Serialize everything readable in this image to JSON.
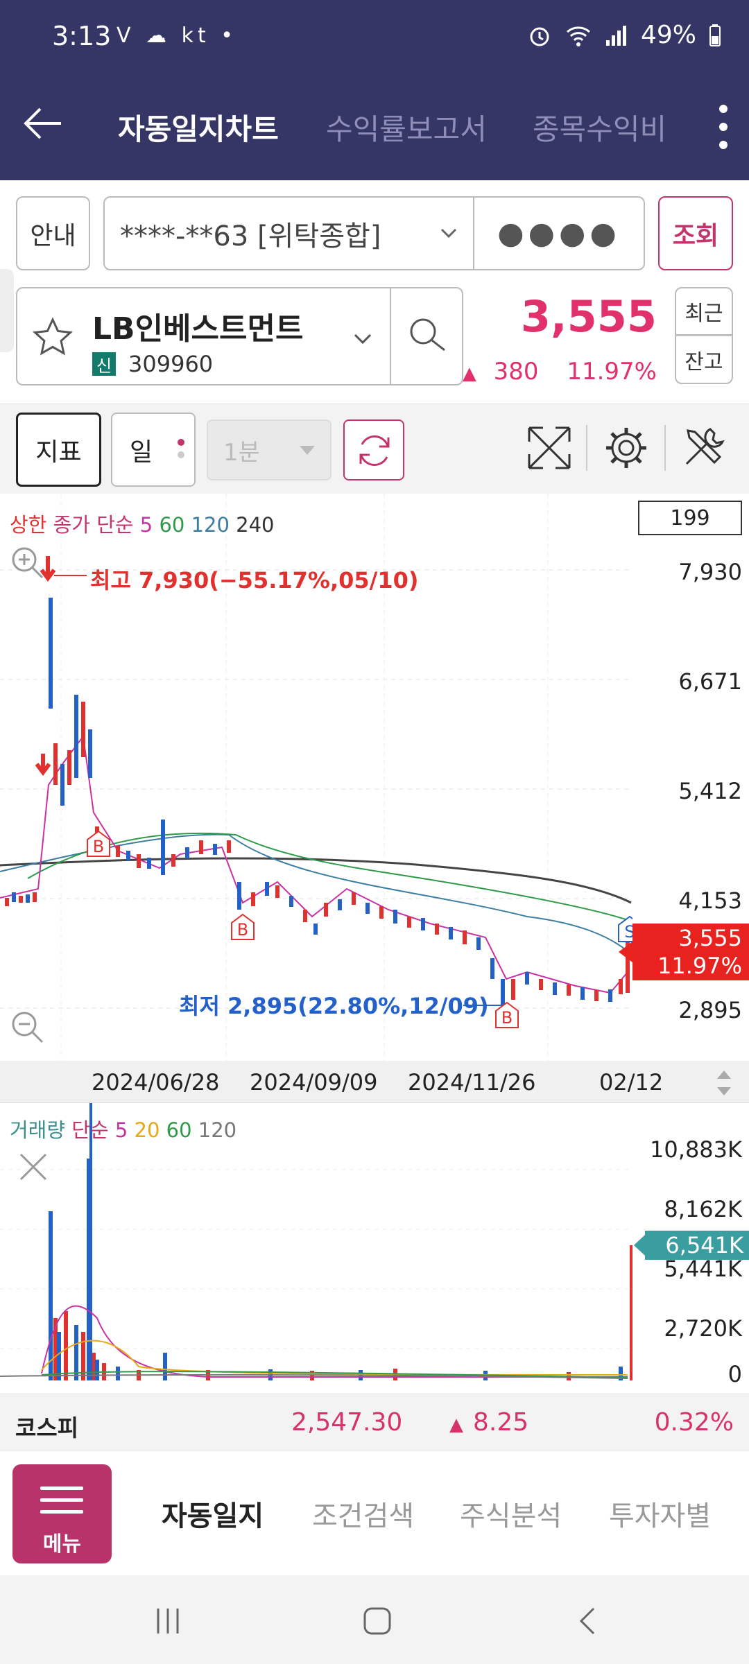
{
  "status_bar": {
    "time": "3:13",
    "left_icons": "V  ☁  kt  •",
    "battery": "49%"
  },
  "app_bar": {
    "tabs": [
      "자동일지차트",
      "수익률보고서",
      "종목수익비"
    ]
  },
  "account_row": {
    "guide_label": "안내",
    "account": "****-**63 [위탁종합]",
    "password_mask": "●●●●",
    "query_label": "조회"
  },
  "stock": {
    "name": "LB인베스트먼트",
    "badge": "신",
    "code": "309960",
    "price": "3,555",
    "change": "380",
    "change_pct": "11.97%",
    "recent_label": "최근",
    "balance_label": "잔고"
  },
  "toolbar": {
    "indicator_label": "지표",
    "period_label": "일",
    "minute_label": "1분"
  },
  "chart": {
    "legend": [
      {
        "text": "상한",
        "color": "#e0312f"
      },
      {
        "text": "종가",
        "color": "#c2346b"
      },
      {
        "text": "단순",
        "color": "#c2346b"
      },
      {
        "text": "5",
        "color": "#c832a6"
      },
      {
        "text": "60",
        "color": "#2e9a4a"
      },
      {
        "text": "120",
        "color": "#3b7ea1"
      },
      {
        "text": "240",
        "color": "#333333"
      }
    ],
    "count": "199",
    "high_annotation": "최고 7,930(−55.17%,05/10)",
    "low_annotation": "최저 2,895(22.80%,12/09)",
    "current_price_tag": "3,555",
    "current_pct_tag": "11.97%",
    "y_ticks": [
      "7,930",
      "6,671",
      "5,412",
      "4,153",
      "2,895"
    ],
    "x_ticks": [
      "2024/06/28",
      "2024/09/09",
      "2024/11/26",
      "02/12"
    ],
    "markers": {
      "buy": "B",
      "sell": "S"
    }
  },
  "volume": {
    "legend": [
      {
        "text": "거래량",
        "color": "#3b8f8f"
      },
      {
        "text": "단순",
        "color": "#c2346b"
      },
      {
        "text": "5",
        "color": "#c832a6"
      },
      {
        "text": "20",
        "color": "#e6a817"
      },
      {
        "text": "60",
        "color": "#2e9a4a"
      },
      {
        "text": "120",
        "color": "#777777"
      }
    ],
    "y_ticks": [
      "10,883K",
      "8,162K",
      "5,441K",
      "2,720K",
      "0"
    ],
    "current_tag": "6,541K"
  },
  "kospi": {
    "name": "코스피",
    "value": "2,547.30",
    "change": "8.25",
    "pct": "0.32%"
  },
  "bottom_nav": {
    "menu_label": "메뉴",
    "tabs": [
      "자동일지",
      "조건검색",
      "주식분석",
      "투자자별"
    ]
  }
}
